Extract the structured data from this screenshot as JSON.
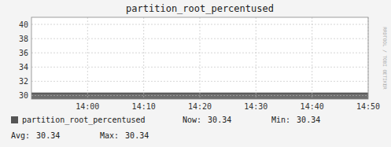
{
  "chart_data": {
    "type": "area",
    "title": "partition_root_percentused",
    "x": [
      0,
      60
    ],
    "series": [
      {
        "name": "partition_root_percentused",
        "color": "#555555",
        "values": [
          30.34,
          30.34
        ]
      }
    ],
    "xlim": [
      0,
      60
    ],
    "xticks": [
      {
        "value": 10,
        "label": "14:00"
      },
      {
        "value": 20,
        "label": "14:10"
      },
      {
        "value": 30,
        "label": "14:20"
      },
      {
        "value": 40,
        "label": "14:30"
      },
      {
        "value": 50,
        "label": "14:40"
      },
      {
        "value": 60,
        "label": "14:50"
      }
    ],
    "ylim": [
      29.5,
      41.0
    ],
    "yticks": [
      30,
      32,
      34,
      36,
      38,
      40
    ],
    "grid": true,
    "summary": [
      {
        "label": "Now:",
        "value": 30.34
      },
      {
        "label": "Min:",
        "value": 30.34
      },
      {
        "label": "Avg:",
        "value": 30.34
      },
      {
        "label": "Max:",
        "value": 30.34
      }
    ],
    "annotations": [
      "RRDTOOL / TOBI OETIKER"
    ]
  }
}
